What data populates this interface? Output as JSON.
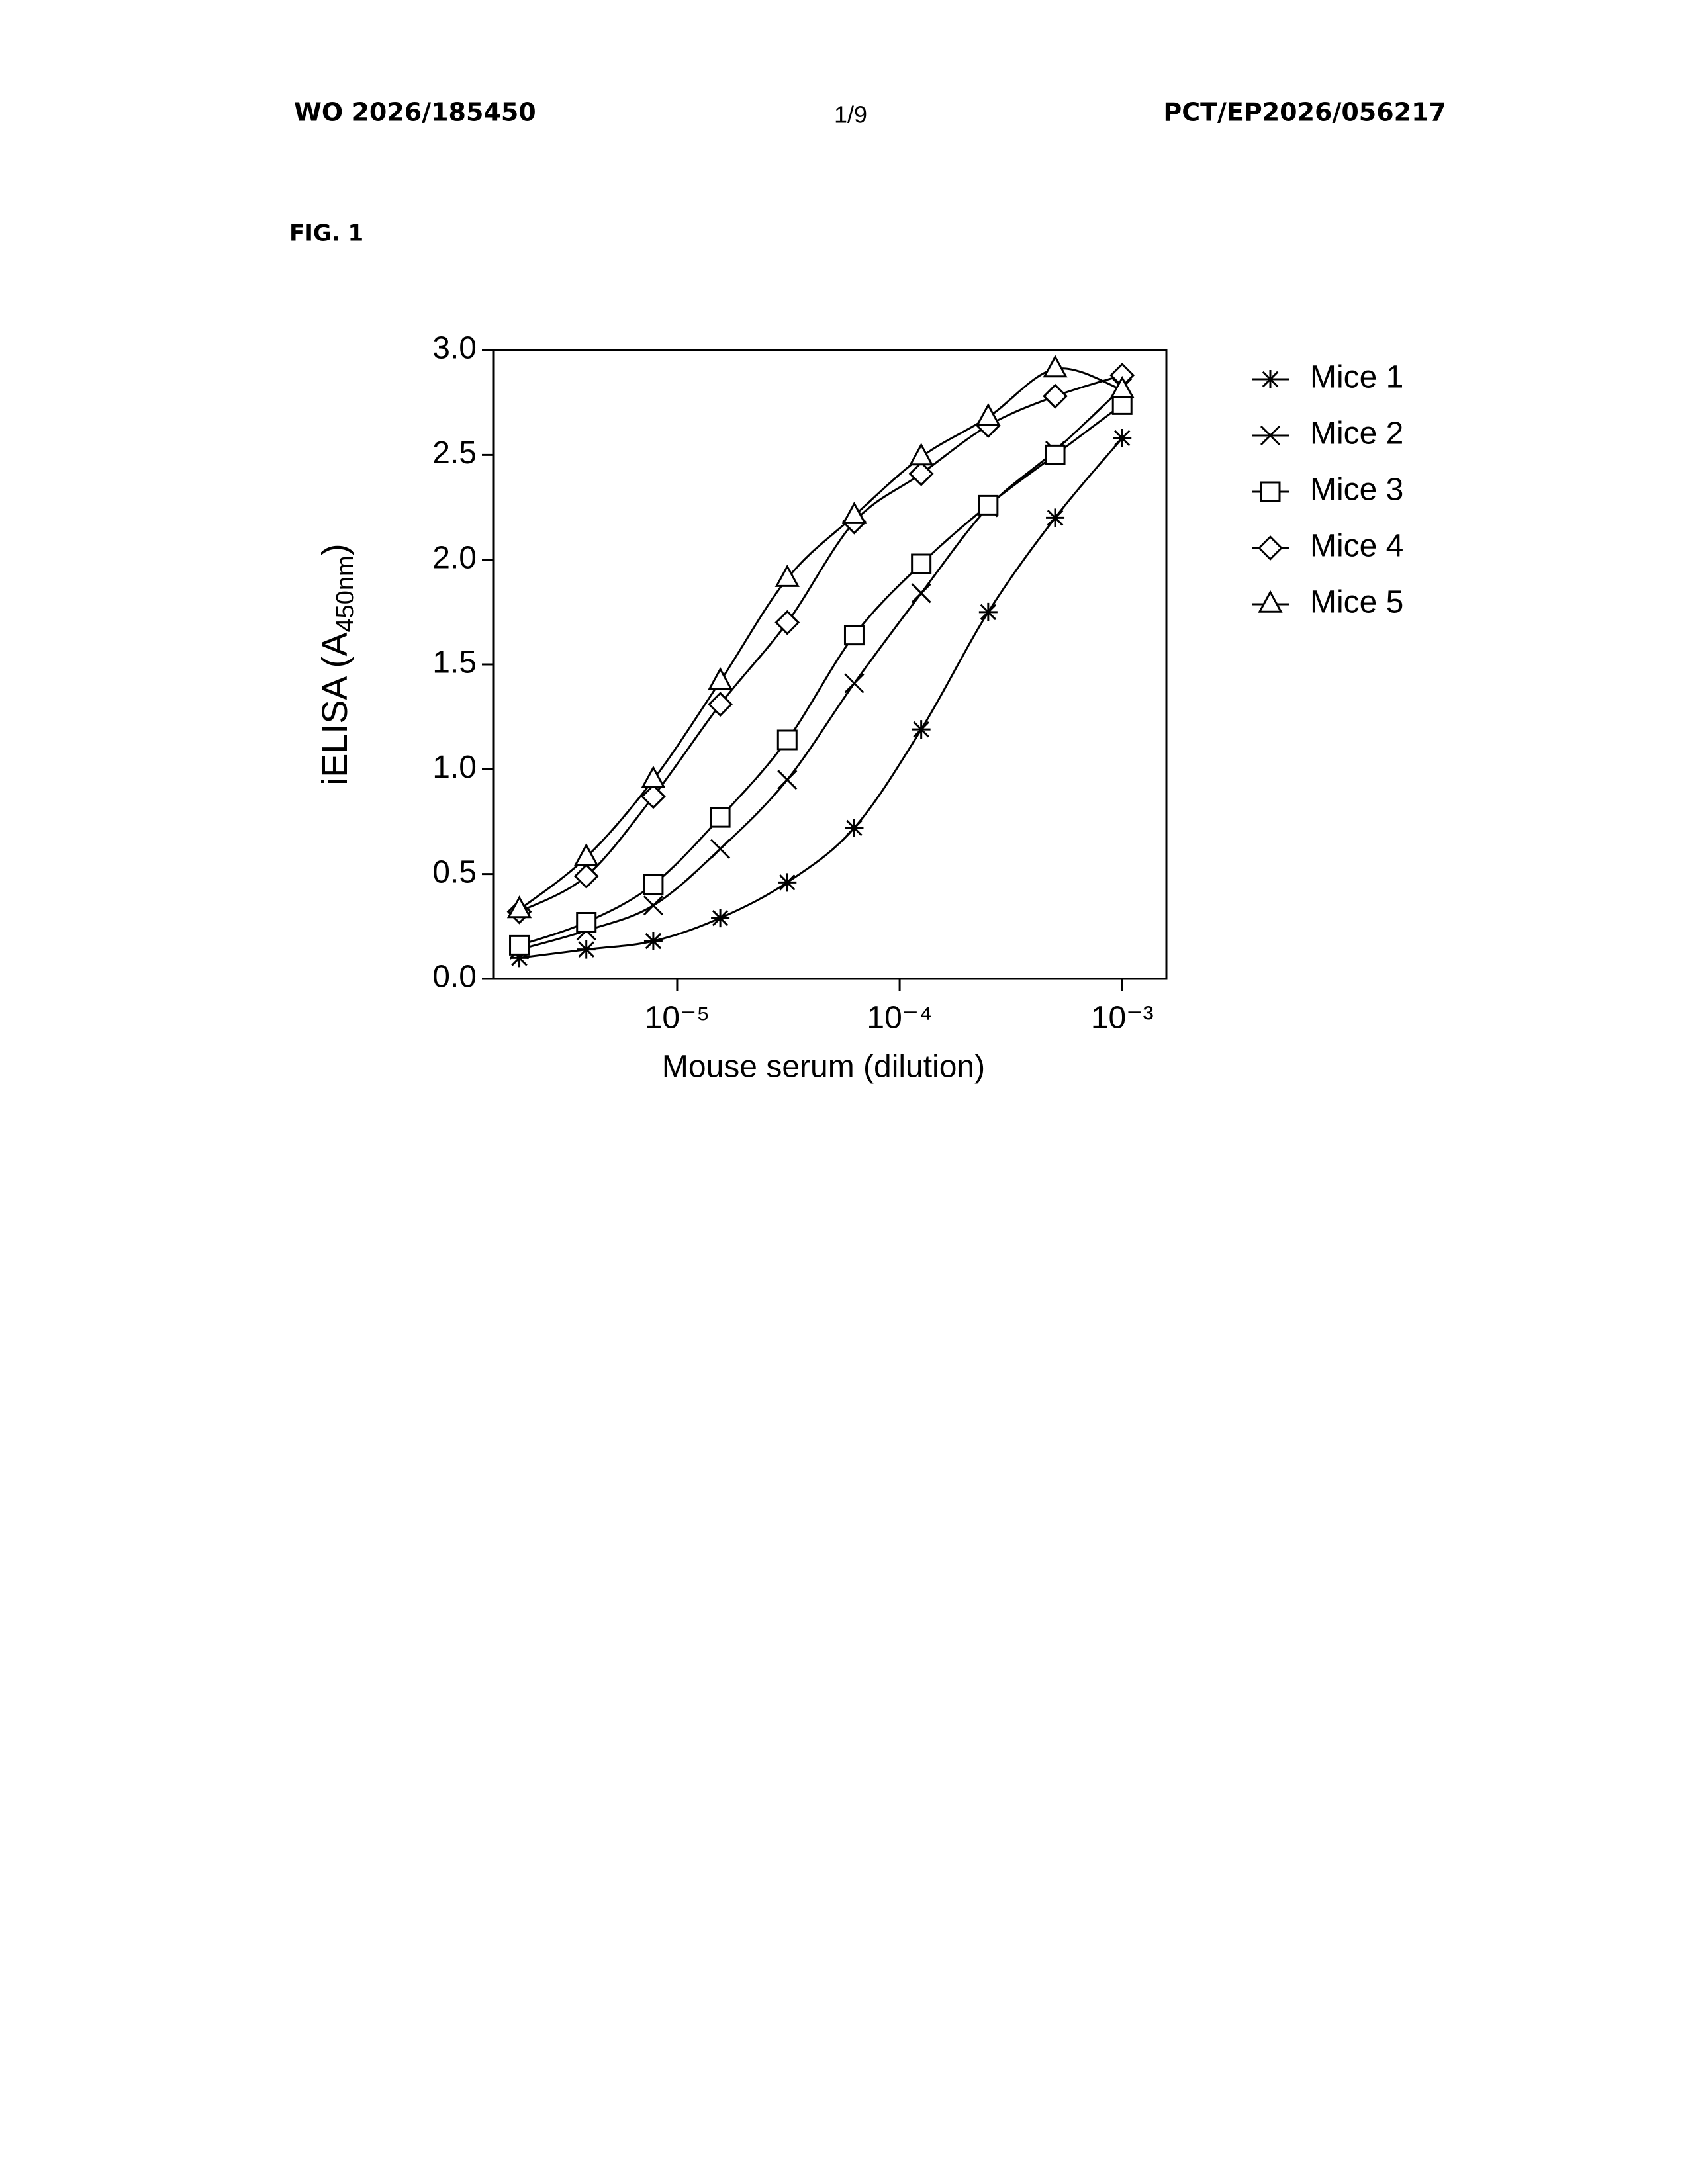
{
  "header": {
    "left": "WO 2026/185450",
    "center": "1/9",
    "right": "PCT/EP2026/056217"
  },
  "figure_label": "FIG. 1",
  "chart_data": {
    "type": "line",
    "x_label": "Mouse serum (dilution)",
    "y_label": [
      "iELISA (A",
      "450nm",
      ")"
    ],
    "xscale": "log",
    "xlim": [
      1.5e-06,
      0.00158
    ],
    "xticks": [
      {
        "value": 1e-05,
        "label": "10⁻⁵"
      },
      {
        "value": 0.0001,
        "label": "10⁻⁴"
      },
      {
        "value": 0.001,
        "label": "10⁻³"
      }
    ],
    "ylim": [
      0,
      3
    ],
    "yticks": [
      {
        "value": 0,
        "label": "0.0"
      },
      0.5,
      {
        "value": 1,
        "label": "1.0"
      },
      1.5,
      {
        "value": 2,
        "label": "2.0"
      },
      2.5,
      {
        "value": 3,
        "label": "3.0"
      }
    ],
    "grid": false,
    "legend": "right",
    "x": [
      1.953e-06,
      3.906e-06,
      7.8125e-06,
      1.5625e-05,
      3.125e-05,
      6.25e-05,
      0.000125,
      0.00025,
      0.0005,
      0.001
    ],
    "series": [
      {
        "name": "Mice 1",
        "color": "#000000",
        "marker": "asterisk",
        "values": [
          0.1,
          0.14,
          0.18,
          0.29,
          0.46,
          0.72,
          1.19,
          1.75,
          2.2,
          2.58
        ]
      },
      {
        "name": "Mice 2",
        "color": "#000000",
        "marker": "x",
        "values": [
          0.14,
          0.23,
          0.35,
          0.62,
          0.95,
          1.41,
          1.84,
          2.25,
          2.52,
          2.82
        ]
      },
      {
        "name": "Mice 3",
        "color": "#000000",
        "marker": "square",
        "values": [
          0.16,
          0.27,
          0.45,
          0.77,
          1.14,
          1.64,
          1.98,
          2.26,
          2.5,
          2.74
        ]
      },
      {
        "name": "Mice 4",
        "color": "#000000",
        "marker": "diamond",
        "values": [
          0.32,
          0.49,
          0.87,
          1.31,
          1.7,
          2.18,
          2.41,
          2.64,
          2.78,
          2.88
        ]
      },
      {
        "name": "Mice 5",
        "color": "#000000",
        "marker": "triangle",
        "values": [
          0.33,
          0.58,
          0.95,
          1.42,
          1.91,
          2.21,
          2.49,
          2.68,
          2.91,
          2.81
        ]
      }
    ]
  }
}
